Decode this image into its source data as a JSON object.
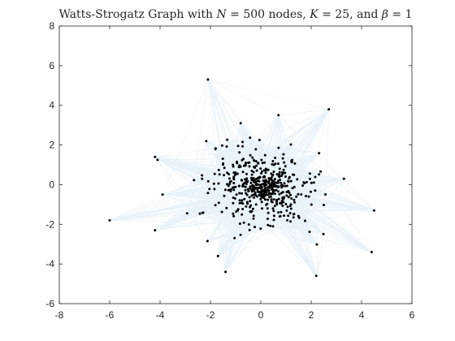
{
  "chart_data": {
    "type": "graph",
    "title": "Watts-Strogatz Graph with N = 500 nodes, K = 25, and β = 1",
    "title_parts": [
      {
        "text": "Watts-Strogatz Graph with ",
        "style": "normal"
      },
      {
        "text": "N",
        "style": "italic"
      },
      {
        "text": " = 500 nodes, ",
        "style": "normal"
      },
      {
        "text": "K",
        "style": "italic"
      },
      {
        "text": " = 25, and ",
        "style": "normal"
      },
      {
        "text": "β",
        "style": "italic"
      },
      {
        "text": " = 1",
        "style": "normal"
      }
    ],
    "xlim": [
      -8,
      6
    ],
    "ylim": [
      -6,
      8
    ],
    "xticks": [
      -8,
      -6,
      -4,
      -2,
      0,
      2,
      4,
      6
    ],
    "yticks": [
      -6,
      -4,
      -2,
      0,
      2,
      4,
      6,
      8
    ],
    "xtick_labels": [
      "-8",
      "-6",
      "-4",
      "-2",
      "0",
      "2",
      "4",
      "6"
    ],
    "ytick_labels": [
      "-6",
      "-4",
      "-2",
      "0",
      "2",
      "4",
      "6",
      "8"
    ],
    "grid": false,
    "nodes": 500,
    "mean_degree_K": 25,
    "beta": 1,
    "edge_color": "#0072BD",
    "node_color": "#000000",
    "outlier_nodes": [
      {
        "x": -2.1,
        "y": 5.3
      },
      {
        "x": 2.7,
        "y": 3.8
      },
      {
        "x": -4.2,
        "y": 1.4
      },
      {
        "x": -4.1,
        "y": 1.25
      },
      {
        "x": -6.0,
        "y": -1.8
      },
      {
        "x": -4.2,
        "y": -2.3
      },
      {
        "x": -1.4,
        "y": -4.4
      },
      {
        "x": 2.2,
        "y": -4.6
      },
      {
        "x": 4.5,
        "y": -1.3
      },
      {
        "x": 4.4,
        "y": -3.4
      },
      {
        "x": 3.3,
        "y": 0.3
      },
      {
        "x": -3.9,
        "y": -0.5
      },
      {
        "x": -1.7,
        "y": -3.6
      },
      {
        "x": 0.7,
        "y": 3.5
      },
      {
        "x": -0.8,
        "y": 3.1
      }
    ]
  }
}
